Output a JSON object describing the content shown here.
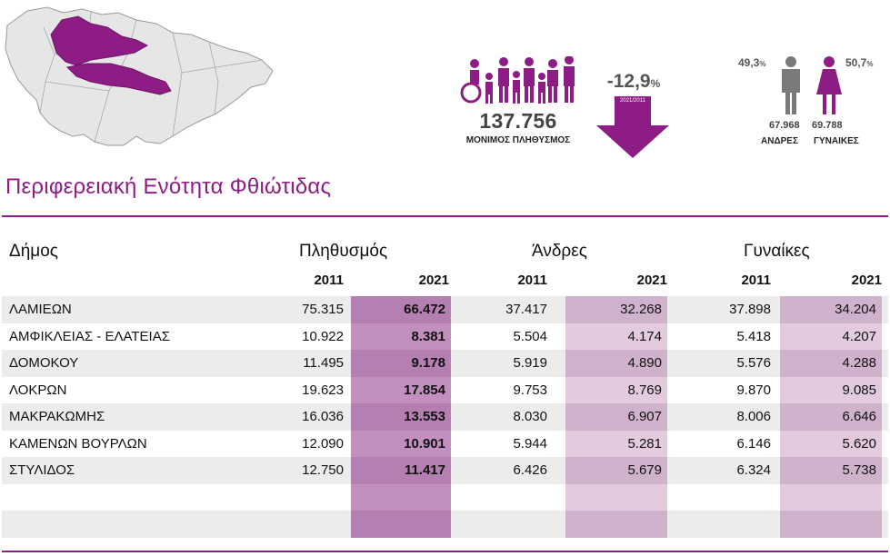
{
  "header": {
    "population_total": "137.756",
    "population_label": "ΜΟΝΙΜΟΣ ΠΛΗΘΥΣΜΟΣ",
    "change_value": "-12,9",
    "change_unit": "%",
    "change_period": "2021/2011",
    "men_pct": "49,3",
    "women_pct": "50,7",
    "pct_unit": "%",
    "men_count": "67.968",
    "women_count": "69.788",
    "men_label": "ΑΝΔΡΕΣ",
    "women_label": "ΓΥΝΑΙΚΕΣ",
    "accent_color": "#8e1c85"
  },
  "title": "Περιφερειακή Ενότητα Φθιώτιδας",
  "table": {
    "col_municipality": "Δήμος",
    "group_population": "Πληθυσμός",
    "group_men": "Άνδρες",
    "group_women": "Γυναίκες",
    "year_a": "2011",
    "year_b": "2021",
    "rows": [
      {
        "name": "ΛΑΜΙΕΩΝ",
        "pop2011": "75.315",
        "pop2021": "66.472",
        "men2011": "37.417",
        "men2021": "32.268",
        "women2011": "37.898",
        "women2021": "34.204"
      },
      {
        "name": "ΑΜΦΙΚΛΕΙΑΣ - ΕΛΑΤΕΙΑΣ",
        "pop2011": "10.922",
        "pop2021": "8.381",
        "men2011": "5.504",
        "men2021": "4.174",
        "women2011": "5.418",
        "women2021": "4.207"
      },
      {
        "name": "ΔΟΜΟΚΟΥ",
        "pop2011": "11.495",
        "pop2021": "9.178",
        "men2011": "5.919",
        "men2021": "4.890",
        "women2011": "5.576",
        "women2021": "4.288"
      },
      {
        "name": "ΛΟΚΡΩΝ",
        "pop2011": "19.623",
        "pop2021": "17.854",
        "men2011": "9.753",
        "men2021": "8.769",
        "women2011": "9.870",
        "women2021": "9.085"
      },
      {
        "name": "ΜΑΚΡΑΚΩΜΗΣ",
        "pop2011": "16.036",
        "pop2021": "13.553",
        "men2011": "8.030",
        "men2021": "6.907",
        "women2011": "8.006",
        "women2021": "6.646"
      },
      {
        "name": "ΚΑΜΕΝΩΝ ΒΟΥΡΛΩΝ",
        "pop2011": "12.090",
        "pop2021": "10.901",
        "men2011": "5.944",
        "men2021": "5.281",
        "women2011": "6.146",
        "women2021": "5.620"
      },
      {
        "name": "ΣΤΥΛΙΔΟΣ",
        "pop2011": "12.750",
        "pop2021": "11.417",
        "men2011": "6.426",
        "men2021": "5.679",
        "women2011": "6.324",
        "women2021": "5.738"
      },
      {
        "name": "",
        "pop2011": "",
        "pop2021": "",
        "men2011": "",
        "men2021": "",
        "women2011": "",
        "women2021": ""
      },
      {
        "name": "",
        "pop2011": "",
        "pop2021": "",
        "men2011": "",
        "men2021": "",
        "women2011": "",
        "women2021": ""
      }
    ]
  }
}
